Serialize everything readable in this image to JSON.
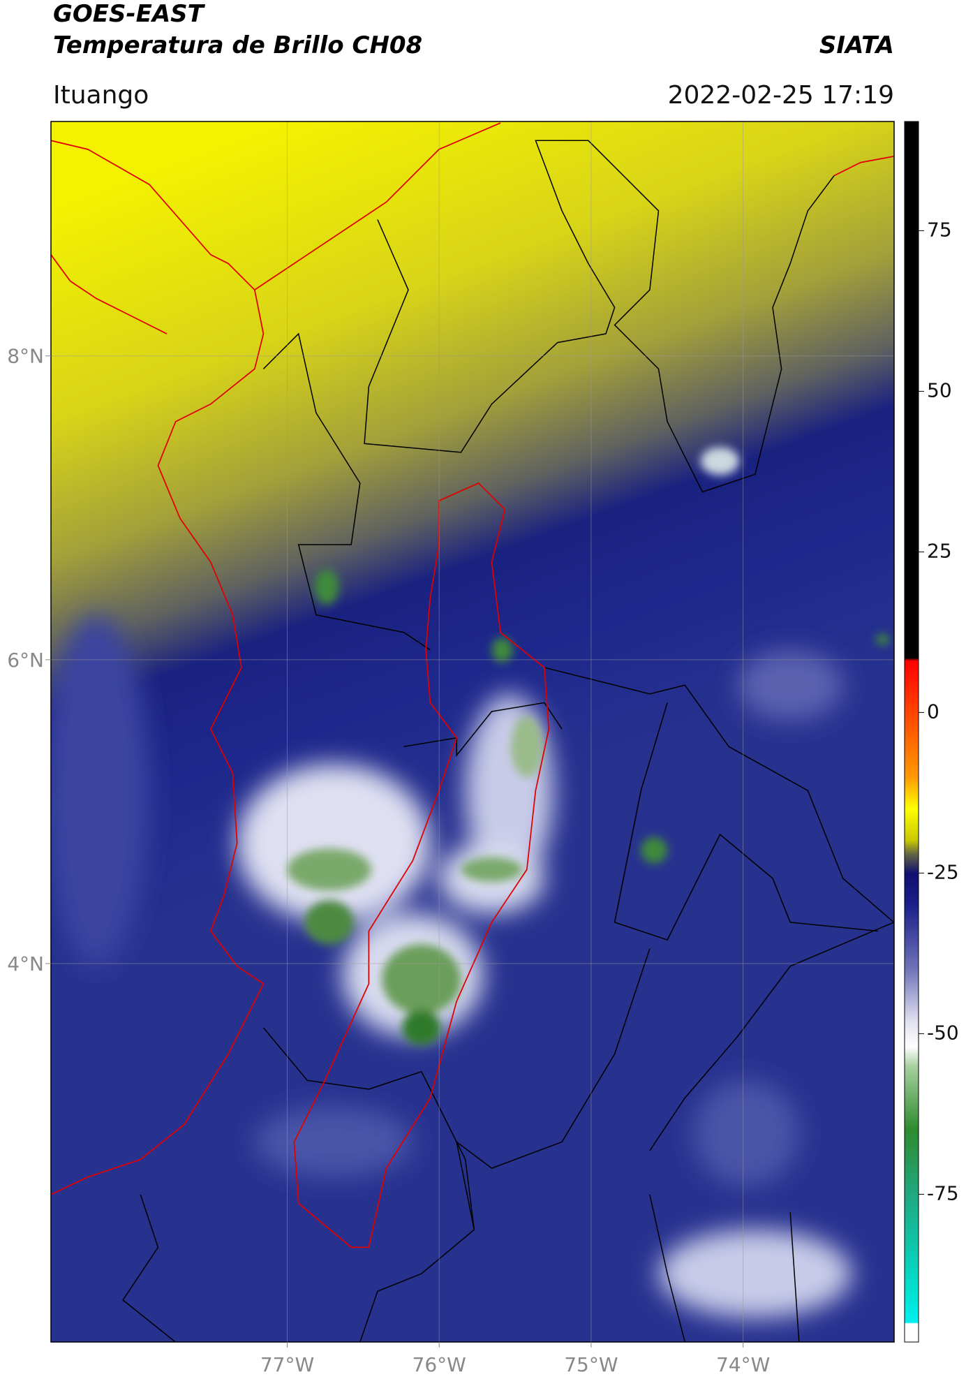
{
  "header": {
    "title": "GOES-EAST",
    "subtitle": "Temperatura de Brillo CH08",
    "source": "SIATA",
    "region": "Ituango",
    "datetime": "2022-02-25 17:19"
  },
  "map": {
    "xlim": [
      -78.555,
      -73.006
    ],
    "ylim": [
      1.509,
      9.543
    ],
    "xticks": [
      {
        "value": -77,
        "label": "77°W"
      },
      {
        "value": -76,
        "label": "76°W"
      },
      {
        "value": -75,
        "label": "75°W"
      },
      {
        "value": -74,
        "label": "74°W"
      }
    ],
    "yticks": [
      {
        "value": 8,
        "label": "8°N"
      },
      {
        "value": 6,
        "label": "6°N"
      },
      {
        "value": 4,
        "label": "4°N"
      }
    ],
    "grid": true
  },
  "colorbar": {
    "lim": [
      -98,
      92
    ],
    "ticks": [
      75,
      50,
      25,
      0,
      -25,
      -50,
      -75
    ]
  }
}
